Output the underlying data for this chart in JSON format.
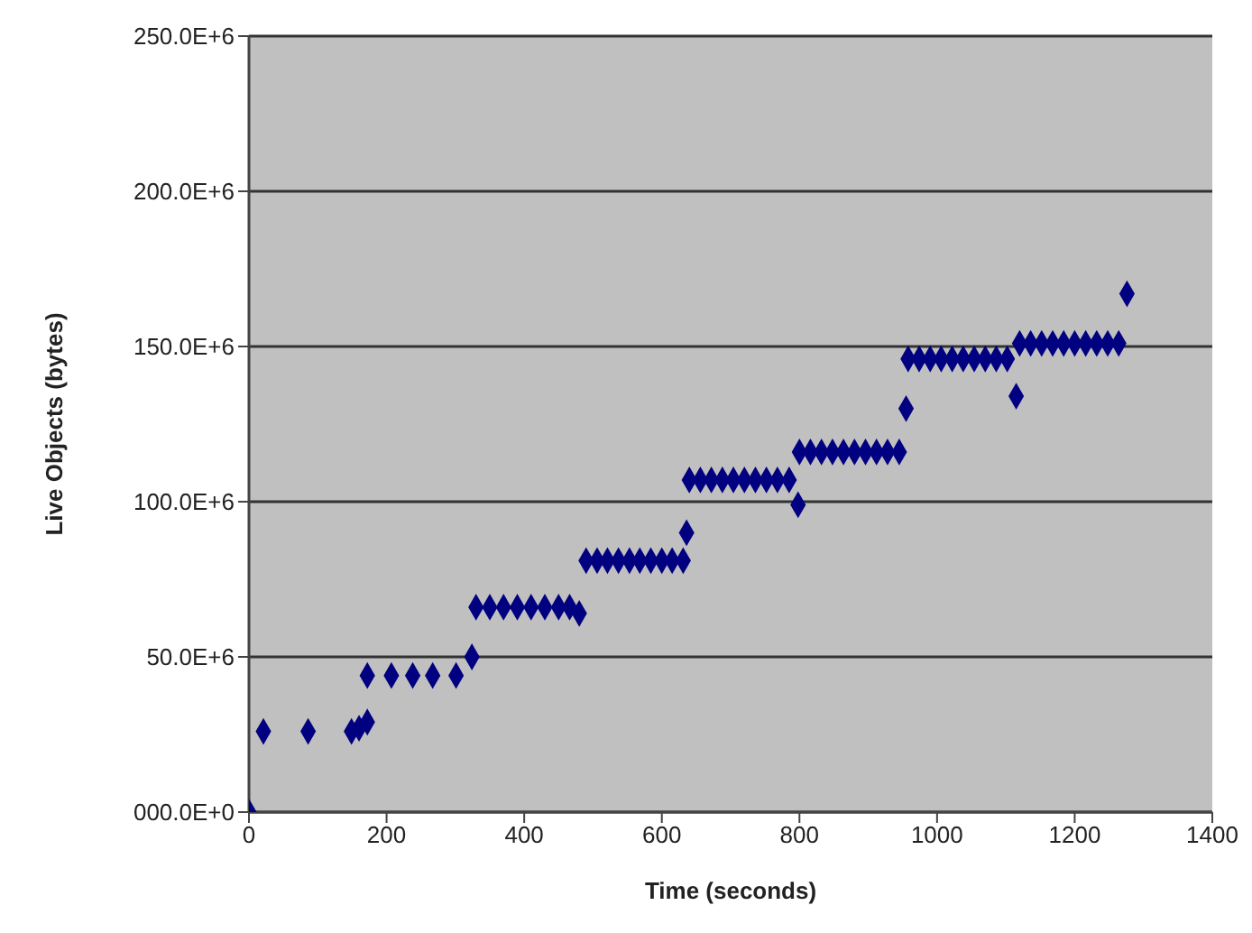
{
  "chart_data": {
    "type": "scatter",
    "xlabel": "Time (seconds)",
    "ylabel": "Live Objects (bytes)",
    "xlim": [
      0,
      1400
    ],
    "xticks": [
      0,
      200,
      400,
      600,
      800,
      1000,
      1200,
      1400
    ],
    "ylim": [
      0,
      250000000
    ],
    "yticks": [
      {
        "value": 0,
        "label": "000.0E+0"
      },
      {
        "value": 50000000,
        "label": "50.0E+6"
      },
      {
        "value": 100000000,
        "label": "100.0E+6"
      },
      {
        "value": 150000000,
        "label": "150.0E+6"
      },
      {
        "value": 200000000,
        "label": "200.0E+6"
      },
      {
        "value": 250000000,
        "label": "250.0E+6"
      }
    ],
    "grid": "y",
    "legend": false,
    "marker": "diamond",
    "series": [
      {
        "color": "#000080",
        "x": [
          0,
          21,
          86,
          149,
          160,
          172,
          172,
          207,
          238,
          267,
          301,
          324,
          330,
          350,
          370,
          390,
          410,
          430,
          450,
          466,
          480,
          490,
          506,
          521,
          537,
          553,
          568,
          584,
          600,
          615,
          631,
          636,
          640,
          656,
          672,
          688,
          704,
          720,
          736,
          752,
          768,
          785,
          798,
          800,
          816,
          832,
          848,
          864,
          880,
          896,
          912,
          928,
          945,
          955,
          958,
          974,
          990,
          1006,
          1022,
          1038,
          1054,
          1070,
          1086,
          1102,
          1115,
          1120,
          1136,
          1152,
          1168,
          1184,
          1200,
          1216,
          1232,
          1248,
          1264,
          1276
        ],
        "values": [
          0,
          26000000,
          26000000,
          26000000,
          27000000,
          29000000,
          44000000,
          44000000,
          44000000,
          44000000,
          44000000,
          50000000,
          66000000,
          66000000,
          66000000,
          66000000,
          66000000,
          66000000,
          66000000,
          66000000,
          64000000,
          81000000,
          81000000,
          81000000,
          81000000,
          81000000,
          81000000,
          81000000,
          81000000,
          81000000,
          81000000,
          90000000,
          107000000,
          107000000,
          107000000,
          107000000,
          107000000,
          107000000,
          107000000,
          107000000,
          107000000,
          107000000,
          99000000,
          116000000,
          116000000,
          116000000,
          116000000,
          116000000,
          116000000,
          116000000,
          116000000,
          116000000,
          116000000,
          130000000,
          146000000,
          146000000,
          146000000,
          146000000,
          146000000,
          146000000,
          146000000,
          146000000,
          146000000,
          146000000,
          134000000,
          151000000,
          151000000,
          151000000,
          151000000,
          151000000,
          151000000,
          151000000,
          151000000,
          151000000,
          151000000,
          167000000
        ]
      }
    ]
  }
}
